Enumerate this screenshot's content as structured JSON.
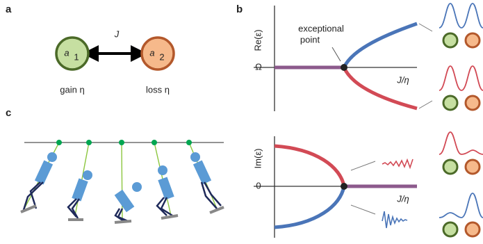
{
  "panels": {
    "a": "a",
    "b": "b",
    "c": "c"
  },
  "nodes": [
    {
      "label": "a",
      "sub": "1",
      "caption": "gain η"
    },
    {
      "label": "a",
      "sub": "2",
      "caption": "loss η"
    }
  ],
  "coupling": "J",
  "top_plot": {
    "ylabel": "Re(ε)",
    "ytick": "Ω",
    "xlabel": "J/η",
    "annotation_1": "exceptional",
    "annotation_2": "point"
  },
  "bottom_plot": {
    "ylabel": "Im(ε)",
    "ytick": "0",
    "xlabel": "J/η"
  }
}
